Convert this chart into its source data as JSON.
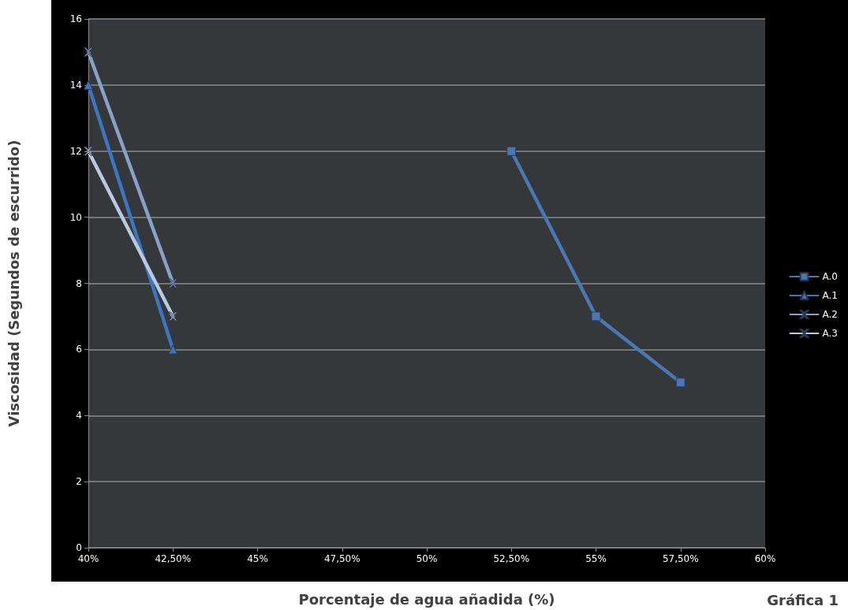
{
  "chart_data": {
    "type": "line",
    "xlabel": "Porcentaje de agua añadida (%)",
    "ylabel": "Viscosidad (Segundos de escurrido)",
    "xlim": [
      40,
      60
    ],
    "xticks": [
      {
        "value": 40,
        "label": "40%"
      },
      {
        "value": 42.5,
        "label": "42,50%"
      },
      {
        "value": 45,
        "label": "45%"
      },
      {
        "value": 47.5,
        "label": "47,50%"
      },
      {
        "value": 50,
        "label": "50%"
      },
      {
        "value": 52.5,
        "label": "52,50%"
      },
      {
        "value": 55,
        "label": "55%"
      },
      {
        "value": 57.5,
        "label": "57,50%"
      },
      {
        "value": 60,
        "label": "60%"
      }
    ],
    "ylim": [
      0,
      16
    ],
    "yticks": [
      0,
      2,
      4,
      6,
      8,
      10,
      12,
      14,
      16
    ],
    "series": [
      {
        "name": "A.0",
        "color": "#4a78b0",
        "marker": "square",
        "x": [
          52.5,
          55,
          57.5
        ],
        "values": [
          12,
          7,
          5
        ]
      },
      {
        "name": "A.1",
        "color": "#3d76bf",
        "marker": "triangle",
        "x": [
          40,
          42.5
        ],
        "values": [
          14,
          6
        ]
      },
      {
        "name": "A.2",
        "color": "#87a2c8",
        "marker": "cross",
        "x": [
          40,
          42.5
        ],
        "values": [
          15,
          8
        ]
      },
      {
        "name": "A.3",
        "color": "#b9c9df",
        "marker": "cross",
        "x": [
          40,
          42.5
        ],
        "values": [
          12,
          7
        ]
      }
    ],
    "grid": "y",
    "legend": "right",
    "line_style": "solid",
    "annotations": [
      "Gráfica 1"
    ]
  }
}
